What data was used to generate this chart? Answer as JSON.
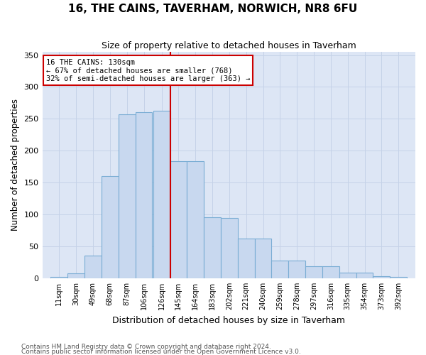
{
  "title": "16, THE CAINS, TAVERHAM, NORWICH, NR8 6FU",
  "subtitle": "Size of property relative to detached houses in Taverham",
  "xlabel": "Distribution of detached houses by size in Taverham",
  "ylabel": "Number of detached properties",
  "categories": [
    "11sqm",
    "30sqm",
    "49sqm",
    "68sqm",
    "87sqm",
    "106sqm",
    "126sqm",
    "145sqm",
    "164sqm",
    "183sqm",
    "202sqm",
    "221sqm",
    "240sqm",
    "259sqm",
    "278sqm",
    "297sqm",
    "316sqm",
    "335sqm",
    "354sqm",
    "373sqm",
    "392sqm"
  ],
  "bar_values": [
    2,
    8,
    35,
    160,
    257,
    260,
    263,
    184,
    184,
    96,
    95,
    62,
    62,
    28,
    28,
    19,
    19,
    9,
    9,
    3,
    2
  ],
  "bar_color": "#c8d8ef",
  "bar_edge_color": "#7aadd4",
  "vline_color": "#cc0000",
  "annotation_line1": "16 THE CAINS: 130sqm",
  "annotation_line2": "← 67% of detached houses are smaller (768)",
  "annotation_line3": "32% of semi-detached houses are larger (363) →",
  "annotation_box_facecolor": "#ffffff",
  "annotation_box_edgecolor": "#cc0000",
  "grid_color": "#c5d2e8",
  "plot_bg_color": "#dde6f5",
  "ylim": [
    0,
    355
  ],
  "yticks": [
    0,
    50,
    100,
    150,
    200,
    250,
    300,
    350
  ],
  "footer1": "Contains HM Land Registry data © Crown copyright and database right 2024.",
  "footer2": "Contains public sector information licensed under the Open Government Licence v3.0."
}
